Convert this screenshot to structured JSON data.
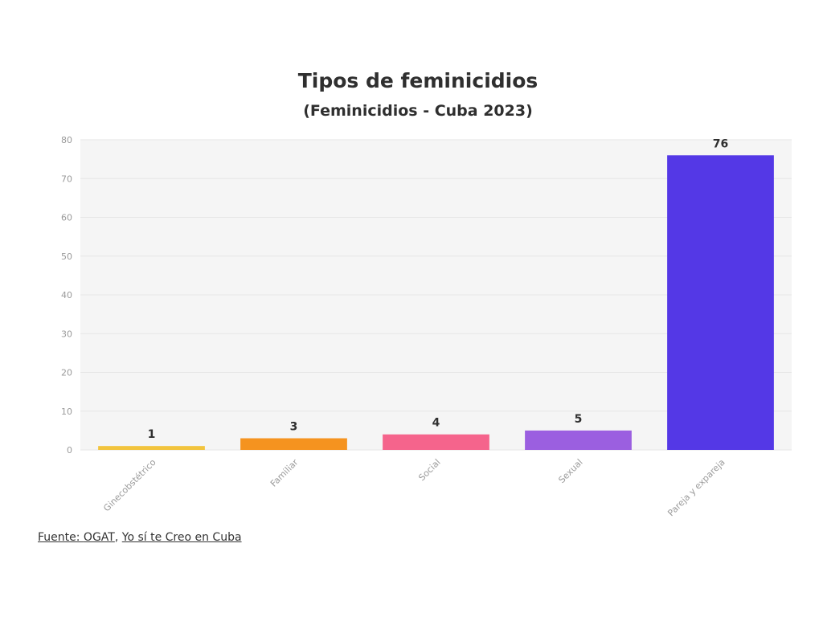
{
  "chart_data": {
    "type": "bar",
    "title": "Tipos de feminicidios",
    "subtitle": "(Feminicidios - Cuba 2023)",
    "categories": [
      "Ginecobstétrico",
      "Familiar",
      "Social",
      "Sexual",
      "Pareja y expareja"
    ],
    "values": [
      1,
      3,
      4,
      5,
      76
    ],
    "colors": [
      "#f2c43d",
      "#f5931f",
      "#f5648c",
      "#9b5fe0",
      "#5438e6"
    ],
    "ylim": [
      0,
      80
    ],
    "yticks": [
      0,
      10,
      20,
      30,
      40,
      50,
      60,
      70,
      80
    ],
    "grid": true,
    "xlabel": "",
    "ylabel": ""
  },
  "source": {
    "prefix": "Fuente: ",
    "link1": "OGAT",
    "separator": ", ",
    "link2": "Yo sí te Creo en Cuba"
  },
  "colors": {
    "plot_bg": "#f5f5f5",
    "grid": "#e6e6e6",
    "axis_text": "#9a9a9a"
  }
}
